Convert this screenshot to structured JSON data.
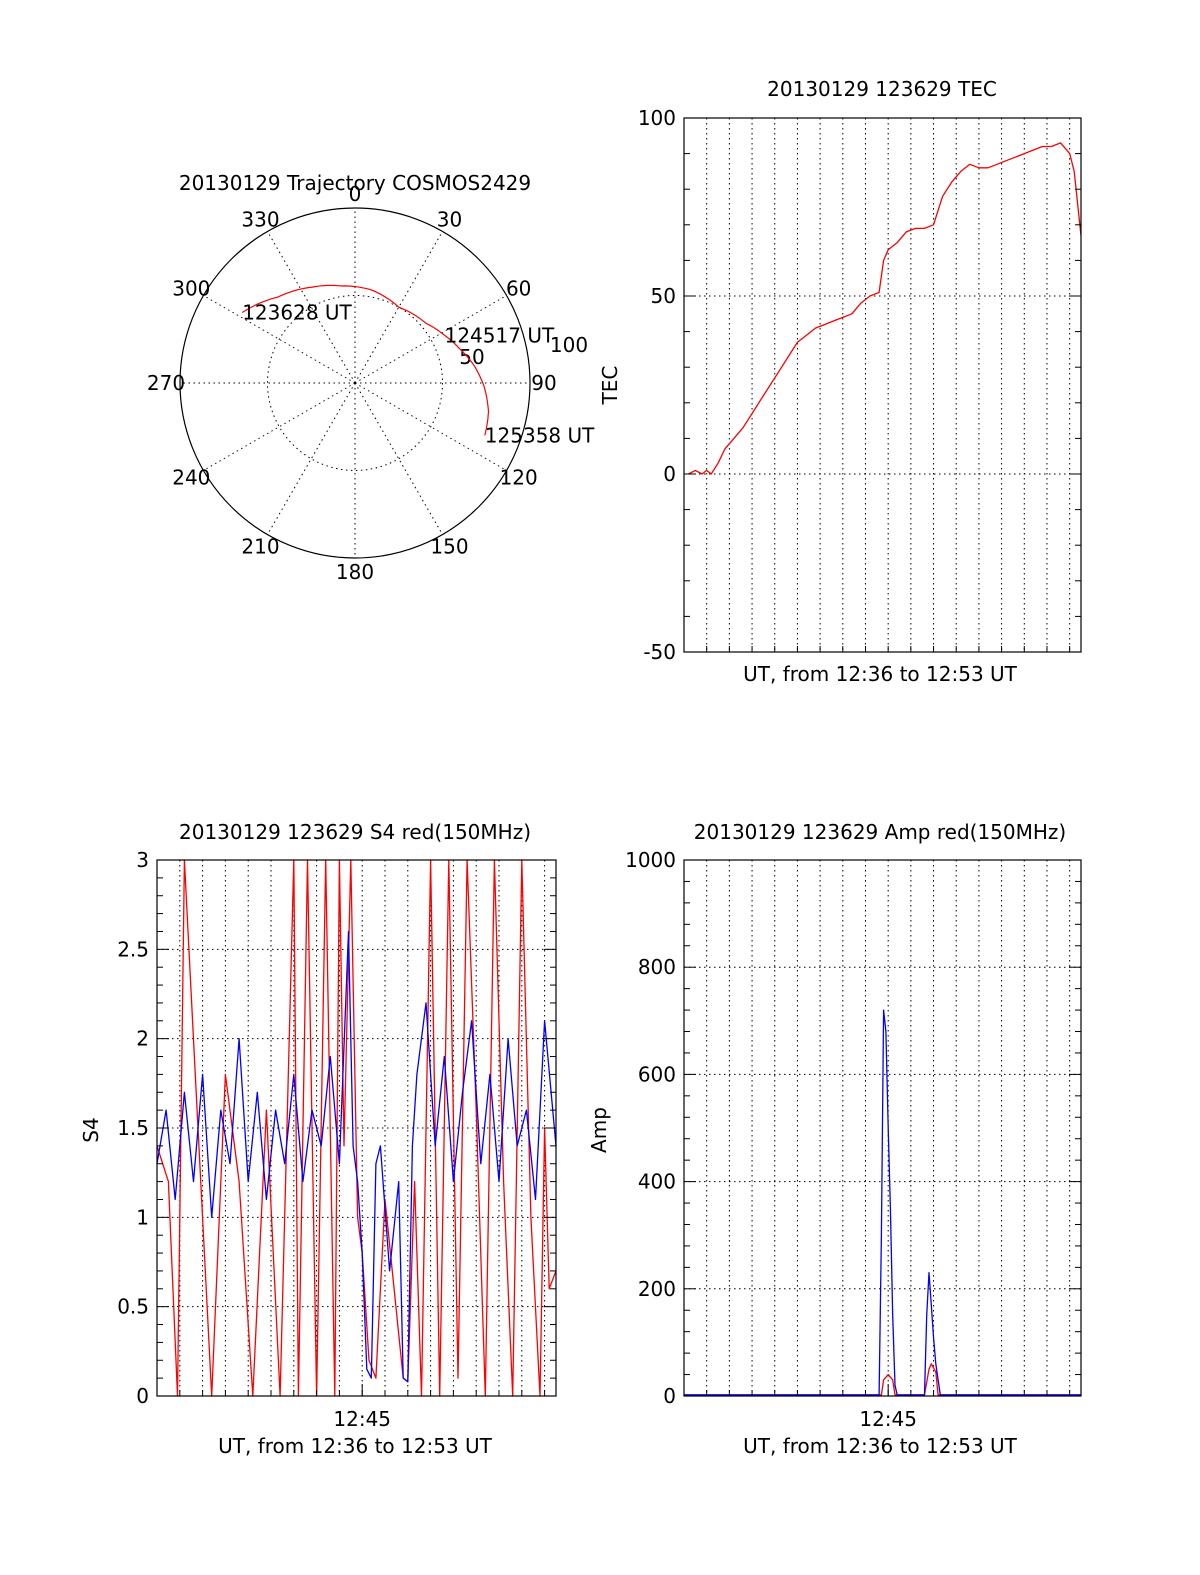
{
  "chart_data": [
    {
      "id": "polar",
      "type": "scatter",
      "title": "20130129 Trajectory COSMOS2429",
      "angle_labels": [
        "0",
        "30",
        "60",
        "90",
        "120",
        "150",
        "180",
        "210",
        "240",
        "270",
        "300",
        "330"
      ],
      "radial_labels": [
        "50",
        "100"
      ],
      "rmax": 100,
      "track_color": "#ff0000",
      "track": [
        {
          "az": 302,
          "r": 76
        },
        {
          "az": 318,
          "r": 66
        },
        {
          "az": 336,
          "r": 60
        },
        {
          "az": 352,
          "r": 56
        },
        {
          "az": 10,
          "r": 54
        },
        {
          "az": 30,
          "r": 50
        },
        {
          "az": 50,
          "r": 53
        },
        {
          "az": 62,
          "r": 58
        },
        {
          "az": 72,
          "r": 63
        },
        {
          "az": 82,
          "r": 69
        },
        {
          "az": 92,
          "r": 74
        },
        {
          "az": 102,
          "r": 78
        },
        {
          "az": 112,
          "r": 80
        }
      ],
      "annotations": [
        {
          "text": "123628 UT",
          "az": 302,
          "r": 76
        },
        {
          "text": "124517 UT",
          "az": 62,
          "r": 58
        },
        {
          "text": "125358 UT",
          "az": 112,
          "r": 80
        }
      ]
    },
    {
      "id": "tec",
      "type": "line",
      "title": "20130129 123629 TEC",
      "xlabel": "UT, from 12:36 to 12:53 UT",
      "ylabel": "TEC",
      "ylim": [
        -50,
        100
      ],
      "yticks": [
        -50,
        0,
        50,
        100
      ],
      "xlim": [
        0,
        17.5
      ],
      "xticks": [],
      "grid": true,
      "series": [
        {
          "color": "#ff0000",
          "x": [
            0.2,
            0.5,
            0.8,
            1.0,
            1.2,
            1.5,
            1.8,
            2.2,
            2.6,
            3.0,
            3.4,
            3.8,
            4.2,
            4.6,
            5.0,
            5.4,
            5.8,
            6.2,
            6.6,
            7.0,
            7.4,
            7.8,
            8.2,
            8.6,
            8.8,
            9.0,
            9.4,
            9.8,
            10.2,
            10.6,
            11.0,
            11.4,
            11.8,
            12.2,
            12.6,
            13.0,
            13.4,
            13.8,
            14.2,
            14.6,
            15.0,
            15.4,
            15.8,
            16.2,
            16.6,
            17.0,
            17.2,
            17.5
          ],
          "y": [
            0,
            1,
            0,
            1,
            0,
            3,
            7,
            10,
            13,
            17,
            21,
            25,
            29,
            33,
            37,
            39,
            41,
            42,
            43,
            44,
            45,
            48,
            50,
            51,
            60,
            63,
            65,
            68,
            69,
            69,
            70,
            78,
            82,
            85,
            87,
            86,
            86,
            87,
            88,
            89,
            90,
            91,
            92,
            92,
            93,
            90,
            85,
            67
          ]
        }
      ]
    },
    {
      "id": "s4",
      "type": "line",
      "title": "20130129 123629 S4 red(150MHz)",
      "xlabel": "UT, from 12:36 to 12:53 UT",
      "ylabel": "S4",
      "ylim": [
        0,
        3
      ],
      "yticks": [
        "0",
        "0.5",
        "1",
        "1.5",
        "2",
        "2.5",
        "3"
      ],
      "xlim": [
        0,
        17.5
      ],
      "xticks": [
        {
          "x": 9.0,
          "label": "12:45"
        }
      ],
      "grid": true,
      "series": [
        {
          "color": "#ff0000",
          "x": [
            0.0,
            0.5,
            0.9,
            1.2,
            1.8,
            2.4,
            3.0,
            3.6,
            4.2,
            4.8,
            5.4,
            6.0,
            6.2,
            6.6,
            7.0,
            7.4,
            7.8,
            8.0,
            8.2,
            8.5,
            8.8,
            9.0,
            9.3,
            9.6,
            10.0,
            10.4,
            10.8,
            11.0,
            11.3,
            11.6,
            12.0,
            12.4,
            12.8,
            13.2,
            13.6,
            14.0,
            14.4,
            14.8,
            15.2,
            15.6,
            16.0,
            16.4,
            16.8,
            17.0,
            17.2,
            17.5
          ],
          "y": [
            1.4,
            1.2,
            0.0,
            3.0,
            1.5,
            0.0,
            1.8,
            1.2,
            0.0,
            1.6,
            0.0,
            3.0,
            0.0,
            3.0,
            0.0,
            3.0,
            0.0,
            3.0,
            1.4,
            3.0,
            1.0,
            0.8,
            0.2,
            0.1,
            1.1,
            0.6,
            0.1,
            0.08,
            1.2,
            0.0,
            3.0,
            0.0,
            3.0,
            0.1,
            3.0,
            1.6,
            0.0,
            3.0,
            1.2,
            0.0,
            3.0,
            1.0,
            0.0,
            1.5,
            0.6,
            0.7
          ]
        },
        {
          "color": "#0000ff",
          "x": [
            0.0,
            0.4,
            0.8,
            1.2,
            1.6,
            2.0,
            2.4,
            2.8,
            3.2,
            3.6,
            4.0,
            4.4,
            4.8,
            5.2,
            5.6,
            6.0,
            6.4,
            6.8,
            7.2,
            7.6,
            8.0,
            8.4,
            8.6,
            8.8,
            9.0,
            9.2,
            9.4,
            9.6,
            9.8,
            10.2,
            10.6,
            10.8,
            11.0,
            11.2,
            11.4,
            11.8,
            12.2,
            12.6,
            13.0,
            13.4,
            13.8,
            14.2,
            14.6,
            15.0,
            15.4,
            15.8,
            16.2,
            16.6,
            17.0,
            17.5
          ],
          "y": [
            1.3,
            1.6,
            1.1,
            1.7,
            1.2,
            1.8,
            1.0,
            1.6,
            1.3,
            2.0,
            1.2,
            1.7,
            1.1,
            1.6,
            1.3,
            1.8,
            1.2,
            1.6,
            1.4,
            1.9,
            1.3,
            2.6,
            1.4,
            1.2,
            0.8,
            0.15,
            0.1,
            1.3,
            1.4,
            0.7,
            1.2,
            0.1,
            0.08,
            1.4,
            1.8,
            2.2,
            1.4,
            1.9,
            1.2,
            1.7,
            2.1,
            1.3,
            1.8,
            1.2,
            2.0,
            1.4,
            1.6,
            1.1,
            2.1,
            1.4
          ]
        }
      ]
    },
    {
      "id": "amp",
      "type": "line",
      "title": "20130129 123629 Amp red(150MHz)",
      "xlabel": "UT, from 12:36 to 12:53 UT",
      "ylabel": "Amp",
      "ylim": [
        0,
        1000
      ],
      "yticks": [
        0,
        200,
        400,
        600,
        800,
        1000
      ],
      "xlim": [
        0,
        17.5
      ],
      "xticks": [
        {
          "x": 9.0,
          "label": "12:45"
        }
      ],
      "grid": true,
      "series": [
        {
          "color": "#ff0000",
          "x": [
            0.0,
            8.7,
            8.8,
            9.0,
            9.2,
            9.3,
            10.6,
            10.8,
            10.9,
            11.1,
            11.2,
            17.5
          ],
          "y": [
            2,
            2,
            30,
            40,
            30,
            2,
            2,
            50,
            60,
            45,
            2,
            2
          ]
        },
        {
          "color": "#0000ff",
          "x": [
            0.0,
            8.6,
            8.7,
            8.8,
            8.9,
            9.0,
            9.1,
            9.2,
            9.3,
            9.4,
            10.6,
            10.7,
            10.8,
            10.9,
            11.0,
            11.1,
            11.3,
            17.5
          ],
          "y": [
            2,
            2,
            300,
            720,
            680,
            500,
            350,
            150,
            20,
            2,
            2,
            150,
            230,
            170,
            110,
            60,
            2,
            2
          ]
        }
      ]
    }
  ]
}
